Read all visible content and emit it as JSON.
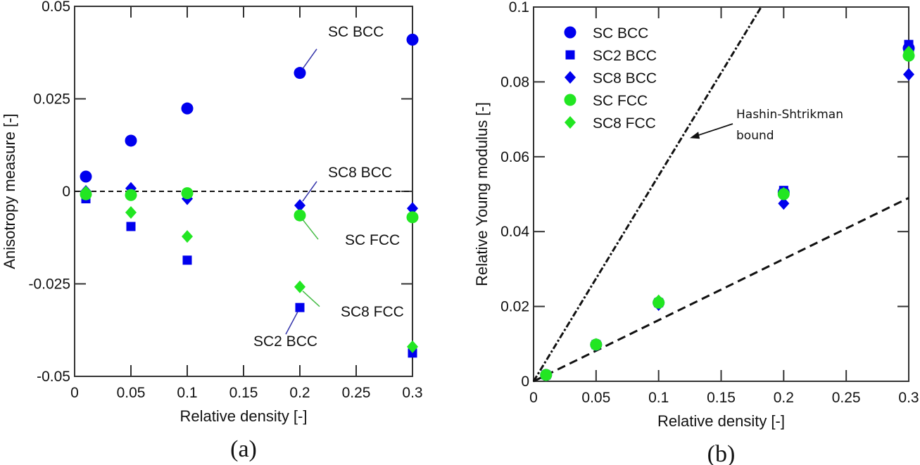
{
  "chart_data": [
    {
      "type": "scatter",
      "panel_label": "(a)",
      "title": "",
      "xlabel": "Relative density [-]",
      "ylabel": "Anisotropy measure [-]",
      "xlim": [
        0,
        0.3
      ],
      "ylim": [
        -0.05,
        0.05
      ],
      "xticks": [
        0,
        0.05,
        0.1,
        0.15,
        0.2,
        0.25,
        0.3
      ],
      "xtick_labels": [
        "0",
        "0.05",
        "0.1",
        "0.15",
        "0.2",
        "0.25",
        "0.3"
      ],
      "yticks": [
        -0.05,
        -0.025,
        0,
        0.025,
        0.05
      ],
      "ytick_labels": [
        "-0.05",
        "-0.025",
        "0",
        "0.025",
        "0.05"
      ],
      "grid": false,
      "reference_line": {
        "y": 0,
        "style": "dashed"
      },
      "x": [
        0.01,
        0.05,
        0.1,
        0.2,
        0.3
      ],
      "series": [
        {
          "name": "SC BCC",
          "marker": "circle",
          "color": "#0000ee",
          "values": [
            0.004,
            0.0137,
            0.0224,
            0.032,
            0.041
          ]
        },
        {
          "name": "SC2 BCC",
          "marker": "square",
          "color": "#0000ee",
          "values": [
            -0.002,
            -0.0095,
            -0.0186,
            -0.0314,
            -0.0437
          ]
        },
        {
          "name": "SC8 BCC",
          "marker": "diamond",
          "color": "#0000ee",
          "values": [
            0.0,
            0.0008,
            -0.002,
            -0.0038,
            -0.0046
          ]
        },
        {
          "name": "SC FCC",
          "marker": "circle",
          "color": "#22e622",
          "values": [
            -0.0008,
            -0.001,
            -0.0005,
            -0.0065,
            -0.007
          ]
        },
        {
          "name": "SC8 FCC",
          "marker": "diamond",
          "color": "#22e622",
          "values": [
            -0.0002,
            -0.0057,
            -0.0122,
            -0.0258,
            -0.042
          ]
        }
      ],
      "annotations": [
        {
          "text": "SC BCC",
          "points_to": {
            "x": 0.2,
            "y": 0.032
          },
          "color": "#3333aa"
        },
        {
          "text": "SC8 BCC",
          "points_to": {
            "x": 0.2,
            "y": -0.0038
          },
          "color": "#3333aa"
        },
        {
          "text": "SC FCC",
          "points_to": {
            "x": 0.2,
            "y": -0.0065
          },
          "color": "#44bb44"
        },
        {
          "text": "SC8 FCC",
          "points_to": {
            "x": 0.2,
            "y": -0.0258
          },
          "color": "#44bb44"
        },
        {
          "text": "SC2 BCC",
          "points_to": {
            "x": 0.2,
            "y": -0.0314
          },
          "color": "#3333aa"
        }
      ]
    },
    {
      "type": "scatter",
      "panel_label": "(b)",
      "title": "",
      "xlabel": "Relative density [-]",
      "ylabel": "Relative Young modulus [-]",
      "xlim": [
        0,
        0.3
      ],
      "ylim": [
        0,
        0.1
      ],
      "xticks": [
        0,
        0.05,
        0.1,
        0.15,
        0.2,
        0.25,
        0.3
      ],
      "xtick_labels": [
        "0",
        "0.05",
        "0.1",
        "0.15",
        "0.2",
        "0.25",
        "0.3"
      ],
      "yticks": [
        0,
        0.02,
        0.04,
        0.06,
        0.08,
        0.1
      ],
      "ytick_labels": [
        "0",
        "0.02",
        "0.04",
        "0.06",
        "0.08",
        "0.1"
      ],
      "grid": false,
      "legend_position": "top-left",
      "x": [
        0.01,
        0.05,
        0.1,
        0.2,
        0.3
      ],
      "series": [
        {
          "name": "SC BCC",
          "marker": "circle",
          "color": "#0000ee",
          "values": [
            0.0017,
            0.0098,
            0.021,
            0.0505,
            0.089
          ]
        },
        {
          "name": "SC2 BCC",
          "marker": "square",
          "color": "#0000ee",
          "values": [
            0.0017,
            0.0098,
            0.021,
            0.051,
            0.09
          ]
        },
        {
          "name": "SC8 BCC",
          "marker": "diamond",
          "color": "#0000ee",
          "values": [
            0.0017,
            0.0097,
            0.0205,
            0.0475,
            0.082
          ]
        },
        {
          "name": "SC FCC",
          "marker": "circle",
          "color": "#22e622",
          "values": [
            0.0017,
            0.0098,
            0.021,
            0.05,
            0.087
          ]
        },
        {
          "name": "SC8 FCC",
          "marker": "diamond",
          "color": "#22e622",
          "values": [
            0.0017,
            0.0099,
            0.0215,
            0.0502,
            0.088
          ]
        }
      ],
      "lines": [
        {
          "name": "Hashin-Shtrikman bound",
          "style": "dash-dot",
          "x": [
            0,
            0.182
          ],
          "y": [
            0,
            0.1
          ]
        },
        {
          "name": "lower reference",
          "style": "dashed",
          "x": [
            0,
            0.3
          ],
          "y": [
            0,
            0.049
          ]
        }
      ],
      "annotations": [
        {
          "text_lines": [
            "Hashin-Shtrikman",
            "bound"
          ],
          "points_to": {
            "x": 0.125,
            "y": 0.065
          }
        }
      ]
    }
  ]
}
